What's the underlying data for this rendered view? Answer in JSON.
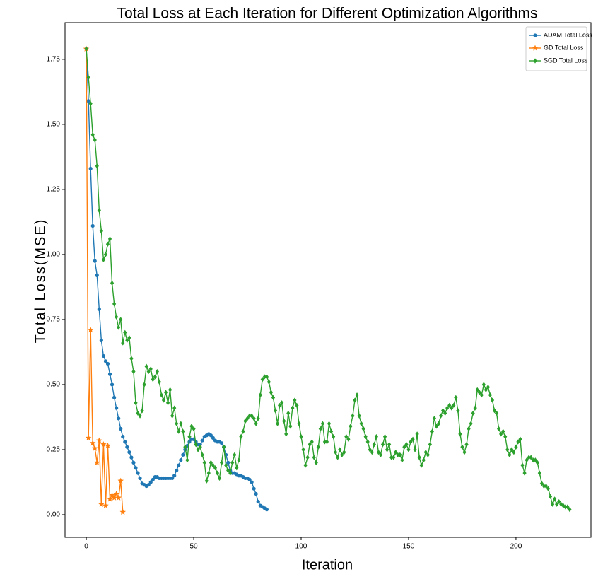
{
  "chart_data": {
    "type": "line",
    "title": "Total Loss at Each Iteration for Different Optimization Algorithms",
    "xlabel": "Iteration",
    "ylabel": "Total Loss(MSE)",
    "xlim": [
      -9.9,
      234.9
    ],
    "ylim": [
      -0.087,
      1.891
    ],
    "xticks": [
      0,
      50,
      100,
      150,
      200
    ],
    "yticks": [
      {
        "value": 0,
        "label": "0.00"
      },
      0.25,
      {
        "value": 0.5,
        "label": "0.50"
      },
      0.75,
      {
        "value": 1,
        "label": "1.00"
      },
      1.25,
      {
        "value": 1.5,
        "label": "1.50"
      },
      1.75
    ],
    "legend": "upper right",
    "series": [
      {
        "name": "ADAM Total Loss",
        "color": "#1f77b4",
        "marker": "circle",
        "x": [
          0,
          1,
          2,
          3,
          4,
          5,
          6,
          7,
          8,
          9,
          10,
          11,
          12,
          13,
          14,
          15,
          16,
          17,
          18,
          19,
          20,
          21,
          22,
          23,
          24,
          25,
          26,
          27,
          28,
          29,
          30,
          31,
          32,
          33,
          34,
          35,
          36,
          37,
          38,
          39,
          40,
          41,
          42,
          43,
          44,
          45,
          46,
          47,
          48,
          49,
          50,
          51,
          52,
          53,
          54,
          55,
          56,
          57,
          58,
          59,
          60,
          61,
          62,
          63,
          64,
          65,
          66,
          67,
          68,
          69,
          70,
          71,
          72,
          73,
          74,
          75,
          76,
          77,
          78,
          79,
          80,
          81,
          82,
          83,
          84
        ],
        "values": [
          1.79,
          1.59,
          1.33,
          1.11,
          0.975,
          0.92,
          0.79,
          0.67,
          0.61,
          0.59,
          0.58,
          0.54,
          0.5,
          0.45,
          0.41,
          0.37,
          0.33,
          0.3,
          0.28,
          0.26,
          0.24,
          0.22,
          0.2,
          0.18,
          0.16,
          0.14,
          0.12,
          0.115,
          0.11,
          0.115,
          0.125,
          0.135,
          0.145,
          0.145,
          0.14,
          0.14,
          0.14,
          0.14,
          0.14,
          0.14,
          0.14,
          0.15,
          0.17,
          0.19,
          0.21,
          0.23,
          0.25,
          0.265,
          0.28,
          0.29,
          0.29,
          0.28,
          0.27,
          0.27,
          0.285,
          0.3,
          0.305,
          0.31,
          0.305,
          0.295,
          0.285,
          0.28,
          0.28,
          0.275,
          0.26,
          0.23,
          0.2,
          0.17,
          0.16,
          0.16,
          0.155,
          0.15,
          0.15,
          0.145,
          0.14,
          0.14,
          0.135,
          0.125,
          0.1,
          0.08,
          0.05,
          0.035,
          0.03,
          0.025,
          0.02
        ]
      },
      {
        "name": "GD Total Loss",
        "color": "#ff7f0e",
        "marker": "star",
        "x": [
          0,
          1,
          2,
          3,
          4,
          5,
          6,
          7,
          8,
          9,
          10,
          11,
          12,
          13,
          14,
          15,
          16,
          17
        ],
        "values": [
          1.79,
          0.295,
          0.71,
          0.275,
          0.255,
          0.2,
          0.285,
          0.04,
          0.27,
          0.035,
          0.265,
          0.06,
          0.075,
          0.065,
          0.08,
          0.065,
          0.13,
          0.01
        ]
      },
      {
        "name": "SGD Total Loss",
        "color": "#2ca02c",
        "marker": "diamond",
        "x": [
          0,
          1,
          2,
          3,
          4,
          5,
          6,
          7,
          8,
          9,
          10,
          11,
          12,
          13,
          14,
          15,
          16,
          17,
          18,
          19,
          20,
          21,
          22,
          23,
          24,
          25,
          26,
          27,
          28,
          29,
          30,
          31,
          32,
          33,
          34,
          35,
          36,
          37,
          38,
          39,
          40,
          41,
          42,
          43,
          44,
          45,
          46,
          47,
          48,
          49,
          50,
          51,
          52,
          53,
          54,
          55,
          56,
          57,
          58,
          59,
          60,
          61,
          62,
          63,
          64,
          65,
          66,
          67,
          68,
          69,
          70,
          71,
          72,
          73,
          74,
          75,
          76,
          77,
          78,
          79,
          80,
          81,
          82,
          83,
          84,
          85,
          86,
          87,
          88,
          89,
          90,
          91,
          92,
          93,
          94,
          95,
          96,
          97,
          98,
          99,
          100,
          101,
          102,
          103,
          104,
          105,
          106,
          107,
          108,
          109,
          110,
          111,
          112,
          113,
          114,
          115,
          116,
          117,
          118,
          119,
          120,
          121,
          122,
          123,
          124,
          125,
          126,
          127,
          128,
          129,
          130,
          131,
          132,
          133,
          134,
          135,
          136,
          137,
          138,
          139,
          140,
          141,
          142,
          143,
          144,
          145,
          146,
          147,
          148,
          149,
          150,
          151,
          152,
          153,
          154,
          155,
          156,
          157,
          158,
          159,
          160,
          161,
          162,
          163,
          164,
          165,
          166,
          167,
          168,
          169,
          170,
          171,
          172,
          173,
          174,
          175,
          176,
          177,
          178,
          179,
          180,
          181,
          182,
          183,
          184,
          185,
          186,
          187,
          188,
          189,
          190,
          191,
          192,
          193,
          194,
          195,
          196,
          197,
          198,
          199,
          200,
          201,
          202,
          203,
          204,
          205,
          206,
          207,
          208,
          209,
          210,
          211,
          212,
          213,
          214,
          215,
          216,
          217,
          218,
          219,
          220,
          221,
          222,
          223,
          224,
          225
        ],
        "values": [
          1.79,
          1.68,
          1.58,
          1.46,
          1.44,
          1.34,
          1.17,
          1.09,
          0.98,
          1.0,
          1.04,
          1.06,
          0.89,
          0.81,
          0.76,
          0.72,
          0.75,
          0.66,
          0.7,
          0.67,
          0.68,
          0.6,
          0.55,
          0.43,
          0.39,
          0.38,
          0.4,
          0.5,
          0.57,
          0.55,
          0.56,
          0.52,
          0.53,
          0.55,
          0.51,
          0.46,
          0.44,
          0.47,
          0.43,
          0.48,
          0.38,
          0.41,
          0.35,
          0.32,
          0.35,
          0.32,
          0.26,
          0.21,
          0.3,
          0.34,
          0.33,
          0.27,
          0.25,
          0.26,
          0.23,
          0.2,
          0.13,
          0.16,
          0.2,
          0.19,
          0.18,
          0.16,
          0.14,
          0.2,
          0.26,
          0.19,
          0.17,
          0.16,
          0.2,
          0.23,
          0.18,
          0.21,
          0.3,
          0.32,
          0.36,
          0.37,
          0.38,
          0.38,
          0.37,
          0.35,
          0.37,
          0.46,
          0.52,
          0.53,
          0.53,
          0.51,
          0.47,
          0.45,
          0.4,
          0.35,
          0.42,
          0.43,
          0.36,
          0.31,
          0.39,
          0.34,
          0.41,
          0.44,
          0.42,
          0.35,
          0.3,
          0.25,
          0.19,
          0.22,
          0.27,
          0.28,
          0.22,
          0.2,
          0.26,
          0.33,
          0.35,
          0.28,
          0.28,
          0.35,
          0.32,
          0.3,
          0.24,
          0.22,
          0.25,
          0.23,
          0.24,
          0.3,
          0.29,
          0.34,
          0.38,
          0.44,
          0.46,
          0.38,
          0.35,
          0.33,
          0.3,
          0.28,
          0.25,
          0.24,
          0.27,
          0.3,
          0.24,
          0.23,
          0.27,
          0.3,
          0.25,
          0.27,
          0.22,
          0.22,
          0.24,
          0.23,
          0.23,
          0.21,
          0.26,
          0.27,
          0.25,
          0.28,
          0.29,
          0.25,
          0.31,
          0.22,
          0.19,
          0.21,
          0.24,
          0.23,
          0.27,
          0.32,
          0.37,
          0.34,
          0.35,
          0.38,
          0.4,
          0.39,
          0.41,
          0.42,
          0.41,
          0.42,
          0.45,
          0.4,
          0.31,
          0.26,
          0.24,
          0.27,
          0.33,
          0.35,
          0.39,
          0.41,
          0.48,
          0.47,
          0.46,
          0.5,
          0.48,
          0.49,
          0.46,
          0.44,
          0.4,
          0.39,
          0.33,
          0.31,
          0.32,
          0.3,
          0.25,
          0.23,
          0.25,
          0.24,
          0.26,
          0.28,
          0.29,
          0.19,
          0.16,
          0.21,
          0.22,
          0.22,
          0.21,
          0.21,
          0.2,
          0.16,
          0.12,
          0.11,
          0.11,
          0.1,
          0.07,
          0.04,
          0.06,
          0.04,
          0.05,
          0.04,
          0.035,
          0.03,
          0.03,
          0.02
        ]
      }
    ]
  }
}
